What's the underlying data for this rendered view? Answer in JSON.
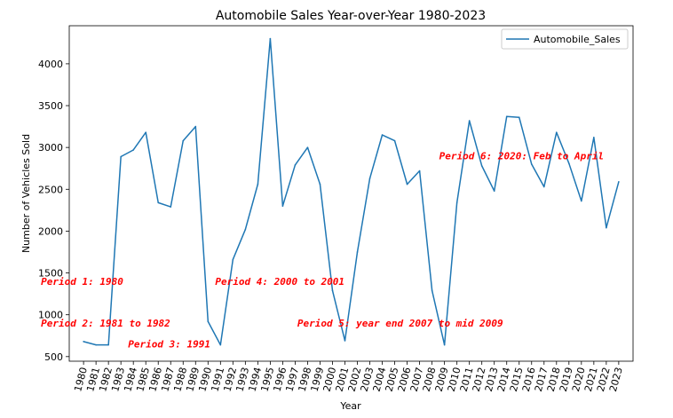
{
  "chart_data": {
    "type": "line",
    "title": "Automobile Sales Year-over-Year 1980-2023",
    "xlabel": "Year",
    "ylabel": "Number of Vehicles Sold",
    "x": [
      1980,
      1981,
      1982,
      1983,
      1984,
      1985,
      1986,
      1987,
      1988,
      1989,
      1990,
      1991,
      1992,
      1993,
      1994,
      1995,
      1996,
      1997,
      1998,
      1999,
      2000,
      2001,
      2002,
      2003,
      2004,
      2005,
      2006,
      2007,
      2008,
      2009,
      2010,
      2011,
      2012,
      2013,
      2014,
      2015,
      2016,
      2017,
      2018,
      2019,
      2020,
      2021,
      2022,
      2023
    ],
    "series": [
      {
        "name": "Automobile_Sales",
        "color": "#1f77b4",
        "values": [
          680,
          640,
          640,
          2890,
          2970,
          3180,
          2340,
          2290,
          3080,
          3250,
          920,
          640,
          1660,
          2020,
          2560,
          4300,
          2300,
          2790,
          3000,
          2560,
          1290,
          690,
          1750,
          2630,
          3150,
          3080,
          2560,
          2720,
          1290,
          640,
          2340,
          3320,
          2780,
          2480,
          3370,
          3360,
          2800,
          2530,
          3180,
          2810,
          2360,
          3120,
          2040,
          2590
        ]
      }
    ],
    "xlim": [
      1978.85,
      2024.15
    ],
    "ylim": [
      445,
      4455
    ],
    "yticks": [
      500,
      1000,
      1500,
      2000,
      2500,
      3000,
      3500,
      4000
    ],
    "legend": {
      "position": "top-right",
      "entries": [
        "Automobile_Sales"
      ]
    },
    "grid": false,
    "annotations": [
      {
        "text": "Period 1: 1980",
        "x": 1980,
        "y": 1400,
        "color": "#ff0000"
      },
      {
        "text": "Period 2: 1981 to 1982",
        "x": 1980,
        "y": 900,
        "color": "#ff0000"
      },
      {
        "text": "Period 3: 1991",
        "x": 1987,
        "y": 650,
        "color": "#ff0000"
      },
      {
        "text": "Period 4: 2000 to 2001",
        "x": 1994,
        "y": 1400,
        "color": "#ff0000"
      },
      {
        "text": "Period 5: year end 2007 to mid 2009",
        "x": 2000.6,
        "y": 900,
        "color": "#ff0000"
      },
      {
        "text": "Period 6: 2020: Feb to April",
        "x": 2012,
        "y": 2900,
        "color": "#ff0000"
      }
    ]
  }
}
